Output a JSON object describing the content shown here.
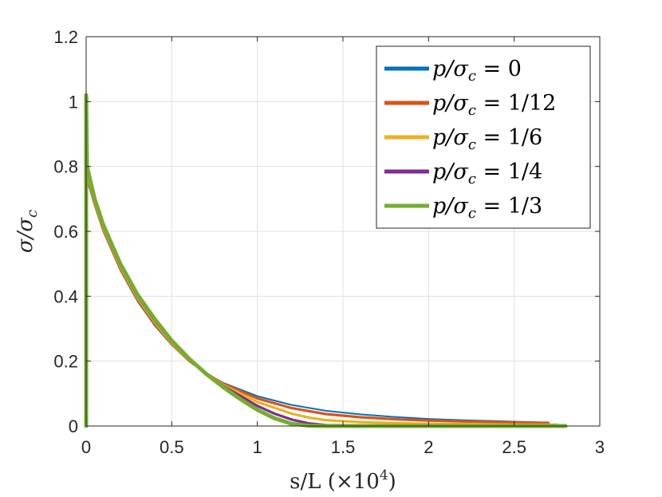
{
  "chart_data": {
    "type": "line",
    "title": "",
    "xlabel_parts": [
      "s/L (×10",
      "4",
      ")"
    ],
    "ylabel_parts": [
      "σ/σ",
      "c"
    ],
    "xlim": [
      0,
      3
    ],
    "ylim": [
      0,
      1.2
    ],
    "xticks": [
      0,
      0.5,
      1,
      1.5,
      2,
      2.5,
      3
    ],
    "xtick_labels": [
      "0",
      "0.5",
      "1",
      "1.5",
      "2",
      "2.5",
      "3"
    ],
    "yticks": [
      0,
      0.2,
      0.4,
      0.6,
      0.8,
      1,
      1.2
    ],
    "ytick_labels": [
      "0",
      "0.2",
      "0.4",
      "0.6",
      "0.8",
      "1",
      "1.2"
    ],
    "grid": true,
    "legend_position": "top-right",
    "series": [
      {
        "name": "p/σc = 0",
        "label_parts": [
          "p/σ",
          "c",
          " = 0"
        ],
        "color": "#0072BD",
        "x": [
          0,
          0,
          0.005,
          0.05,
          0.1,
          0.2,
          0.3,
          0.4,
          0.5,
          0.6,
          0.7,
          0.8,
          1.0,
          1.2,
          1.4,
          1.6,
          1.8,
          2.0,
          2.2,
          2.4,
          2.6,
          2.7
        ],
        "y": [
          0,
          1.0,
          0.76,
          0.68,
          0.6,
          0.48,
          0.385,
          0.31,
          0.25,
          0.2,
          0.163,
          0.133,
          0.092,
          0.065,
          0.047,
          0.036,
          0.028,
          0.022,
          0.018,
          0.015,
          0.012,
          0.011
        ]
      },
      {
        "name": "p/σc = 1/12",
        "label_parts": [
          "p/σ",
          "c",
          " = 1/12"
        ],
        "color": "#D95319",
        "x": [
          0,
          0,
          0.005,
          0.05,
          0.1,
          0.2,
          0.3,
          0.4,
          0.5,
          0.6,
          0.7,
          0.8,
          1.0,
          1.2,
          1.4,
          1.6,
          1.8,
          2.0,
          2.2,
          2.4,
          2.6,
          2.7
        ],
        "y": [
          0,
          1.0,
          0.77,
          0.685,
          0.605,
          0.485,
          0.39,
          0.315,
          0.253,
          0.202,
          0.163,
          0.13,
          0.085,
          0.055,
          0.037,
          0.027,
          0.021,
          0.017,
          0.014,
          0.012,
          0.01,
          0.009
        ]
      },
      {
        "name": "p/σc = 1/6",
        "label_parts": [
          "p/σ",
          "c",
          " = 1/6"
        ],
        "color": "#EDB120",
        "x": [
          0,
          0,
          0.005,
          0.05,
          0.1,
          0.2,
          0.3,
          0.4,
          0.5,
          0.6,
          0.7,
          0.8,
          1.0,
          1.2,
          1.3,
          1.4,
          1.6,
          1.8,
          2.0,
          2.2,
          2.4,
          2.6,
          2.75
        ],
        "y": [
          0,
          1.0,
          0.78,
          0.69,
          0.61,
          0.49,
          0.395,
          0.32,
          0.256,
          0.204,
          0.163,
          0.127,
          0.074,
          0.038,
          0.026,
          0.018,
          0.012,
          0.009,
          0.007,
          0.006,
          0.005,
          0.004,
          0.004
        ]
      },
      {
        "name": "p/σc = 1/4",
        "label_parts": [
          "p/σ",
          "c",
          " = 1/4"
        ],
        "color": "#7E2F8E",
        "x": [
          0,
          0,
          0.005,
          0.05,
          0.1,
          0.2,
          0.3,
          0.4,
          0.5,
          0.6,
          0.7,
          0.8,
          1.0,
          1.1,
          1.2,
          1.3,
          1.4,
          1.6,
          2.0,
          2.4,
          2.8
        ],
        "y": [
          0,
          1.01,
          0.79,
          0.695,
          0.615,
          0.495,
          0.4,
          0.325,
          0.26,
          0.206,
          0.162,
          0.124,
          0.062,
          0.038,
          0.02,
          0.008,
          0.003,
          0.002,
          0.002,
          0.002,
          0.002
        ]
      },
      {
        "name": "p/σc = 1/3",
        "label_parts": [
          "p/σ",
          "c",
          " = 1/3"
        ],
        "color": "#77AC30",
        "x": [
          0,
          0,
          0.005,
          0.05,
          0.1,
          0.2,
          0.3,
          0.4,
          0.5,
          0.6,
          0.7,
          0.8,
          0.9,
          1.0,
          1.1,
          1.2,
          1.3,
          1.4,
          1.6,
          2.0,
          2.4,
          2.8
        ],
        "y": [
          0,
          1.02,
          0.8,
          0.7,
          0.62,
          0.5,
          0.405,
          0.33,
          0.263,
          0.208,
          0.161,
          0.12,
          0.083,
          0.05,
          0.024,
          0.007,
          0.001,
          0.0,
          0.0,
          0.0,
          0.0,
          0.0
        ]
      }
    ]
  }
}
